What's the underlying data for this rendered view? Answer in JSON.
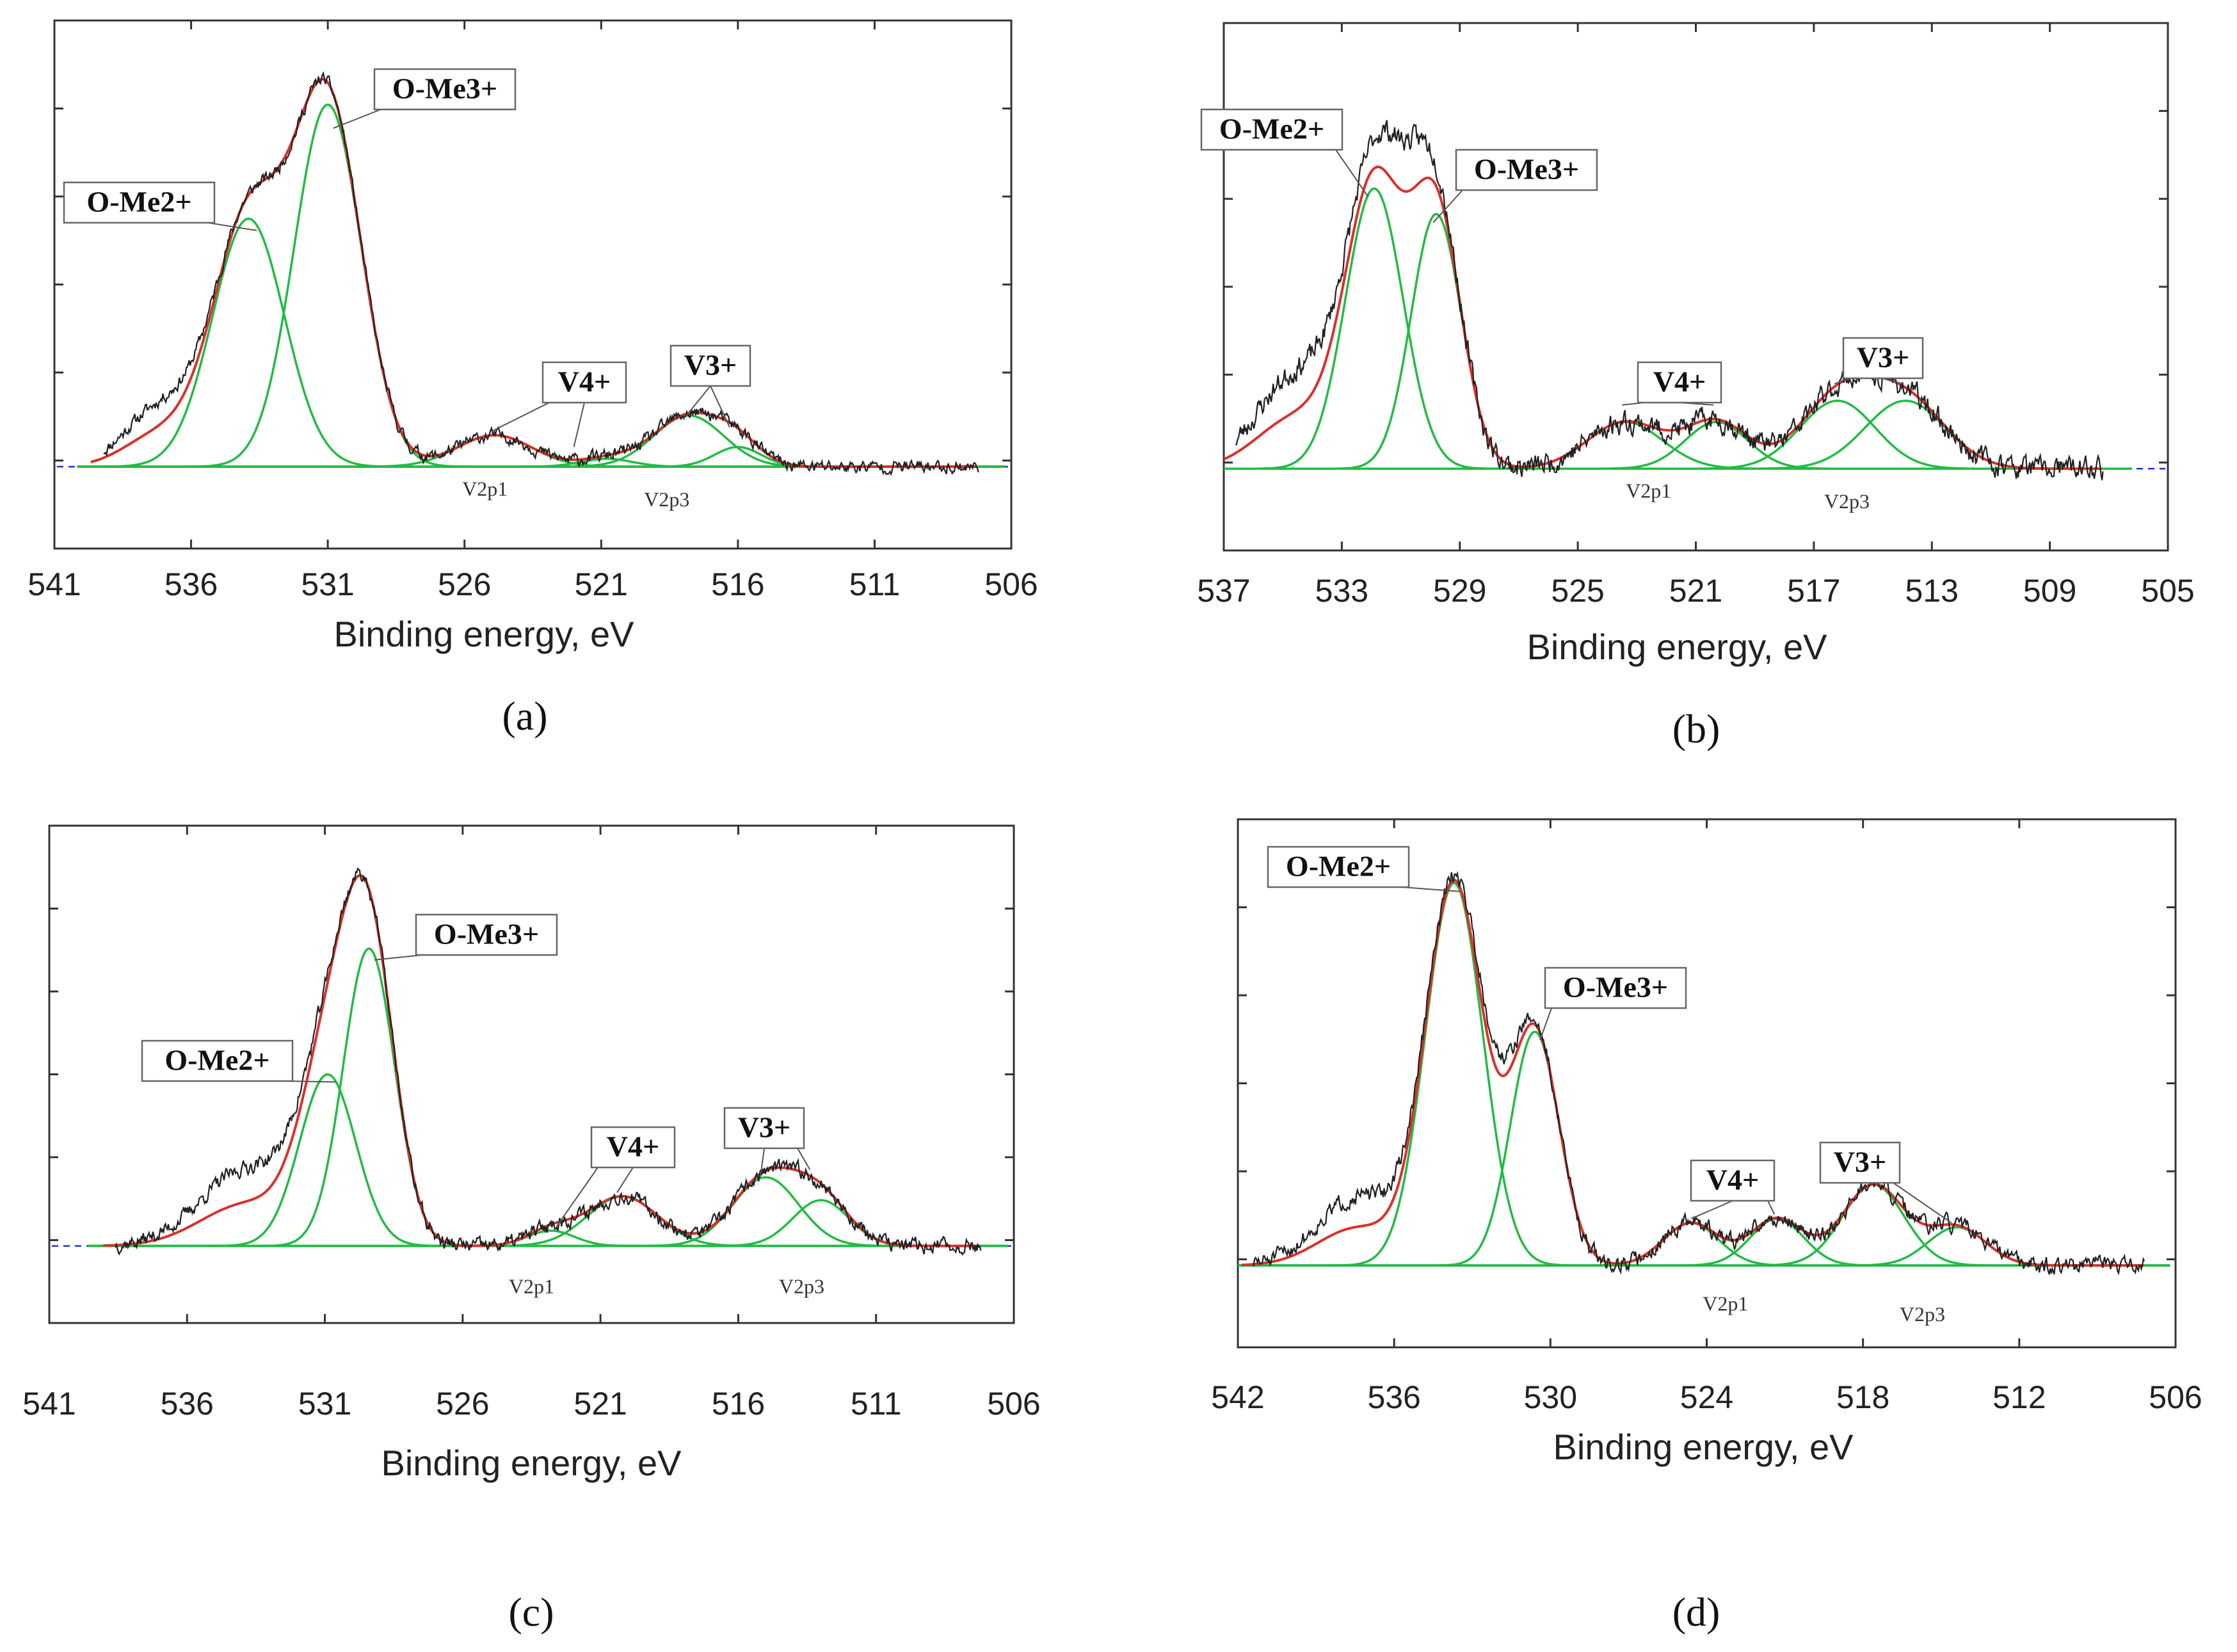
{
  "figure": {
    "colors": {
      "raw": "#222222",
      "envelope": "#d8322c",
      "component": "#22bb44",
      "baseline_dash": "#2233cc",
      "frame": "#333333"
    },
    "font_note": "none"
  },
  "chart_data": [
    {
      "type": "line",
      "panel_label": "(a)",
      "xlabel": "Binding energy, eV",
      "ylabel": "",
      "xlim": [
        541,
        506
      ],
      "ylim": [
        0,
        1.08
      ],
      "xticks": [
        "541",
        "536",
        "531",
        "526",
        "521",
        "516",
        "511",
        "506"
      ],
      "xtick_values": [
        541,
        536,
        531,
        526,
        521,
        516,
        511,
        506
      ],
      "baseline": 0.0,
      "components": [
        {
          "name": "O-Me2+",
          "center": 533.9,
          "height": 0.63,
          "fwhm": 3.1
        },
        {
          "name": "O-Me3+",
          "center": 531.0,
          "height": 0.92,
          "fwhm": 2.9
        },
        {
          "name": "V4+ (V2p1)",
          "center": 524.9,
          "height": 0.08,
          "fwhm": 3.2
        },
        {
          "name": "V4+ (V2p1 shoulder)",
          "center": 520.8,
          "height": 0.02,
          "fwhm": 2.2
        },
        {
          "name": "V3+ (V2p3)",
          "center": 517.8,
          "height": 0.13,
          "fwhm": 3.0
        },
        {
          "name": "V3+ (V2p3 shoulder)",
          "center": 516.0,
          "height": 0.05,
          "fwhm": 2.0
        }
      ],
      "raw_noise": {
        "seed": 11,
        "amp": 0.018,
        "x_start": 539.2,
        "x_end": 507.2,
        "shoulder_center": 537.2,
        "shoulder_height": 0.14,
        "shoulder_fwhm": 3.0
      },
      "annotations": [
        {
          "text": "O-Me2+",
          "target_x": 533.6,
          "target_y": 0.6
        },
        {
          "text": "O-Me3+",
          "target_x": 530.8,
          "target_y": 0.86
        },
        {
          "text": "V4+",
          "target_x": 525.0,
          "target_y": 0.09
        },
        {
          "text": "V4+",
          "target_x": 522.0,
          "target_y": 0.05
        },
        {
          "text": "V3+",
          "target_x": 518.0,
          "target_y": 0.12
        },
        {
          "text": "V3+",
          "target_x": 516.3,
          "target_y": 0.1
        }
      ],
      "component_labels": [
        "V2p1",
        "V2p3"
      ]
    },
    {
      "type": "line",
      "panel_label": "(b)",
      "xlabel": "Binding energy, eV",
      "ylabel": "",
      "xlim": [
        537,
        505
      ],
      "ylim": [
        0,
        1.0
      ],
      "xticks": [
        "537",
        "533",
        "529",
        "525",
        "521",
        "517",
        "513",
        "509",
        "505"
      ],
      "xtick_values": [
        537,
        533,
        529,
        525,
        521,
        517,
        513,
        509,
        505
      ],
      "baseline": 0.0,
      "components": [
        {
          "name": "O-Me2+",
          "center": 531.9,
          "height": 0.66,
          "fwhm": 2.3
        },
        {
          "name": "O-Me3+",
          "center": 529.8,
          "height": 0.6,
          "fwhm": 2.0
        },
        {
          "name": "V4+ (V2p1)",
          "center": 523.4,
          "height": 0.11,
          "fwhm": 3.0
        },
        {
          "name": "V4+ (V2p1b)",
          "center": 520.3,
          "height": 0.11,
          "fwhm": 2.5
        },
        {
          "name": "V3+ (V2p3)",
          "center": 516.2,
          "height": 0.16,
          "fwhm": 3.0
        },
        {
          "name": "V3+ (V2p3b)",
          "center": 513.9,
          "height": 0.16,
          "fwhm": 3.2
        }
      ],
      "raw_noise": {
        "seed": 23,
        "amp": 0.03,
        "x_start": 536.6,
        "x_end": 507.2,
        "shoulder_center": 534.5,
        "shoulder_height": 0.22,
        "shoulder_fwhm": 3.2,
        "peak_boost": 0.12
      },
      "annotations": [
        {
          "text": "O-Me2+",
          "target_x": 532.1,
          "target_y": 0.64
        },
        {
          "text": "O-Me3+",
          "target_x": 529.9,
          "target_y": 0.58
        },
        {
          "text": "V4+",
          "target_x": 523.5,
          "target_y": 0.15
        },
        {
          "text": "V4+",
          "target_x": 520.4,
          "target_y": 0.15
        },
        {
          "text": "V3+",
          "target_x": 516.3,
          "target_y": 0.2
        },
        {
          "text": "V3+",
          "target_x": 514.0,
          "target_y": 0.2
        }
      ],
      "component_labels": [
        "V2p1",
        "V2p3"
      ]
    },
    {
      "type": "line",
      "panel_label": "(c)",
      "xlabel": "Binding energy, eV",
      "ylabel": "",
      "xlim": [
        541,
        506
      ],
      "ylim": [
        0,
        1.05
      ],
      "xticks": [
        "541",
        "536",
        "531",
        "526",
        "521",
        "516",
        "511",
        "506"
      ],
      "xtick_values": [
        541,
        536,
        531,
        526,
        521,
        516,
        511,
        506
      ],
      "baseline": 0.0,
      "components": [
        {
          "name": "O-Me2+",
          "center": 530.9,
          "height": 0.45,
          "fwhm": 2.4
        },
        {
          "name": "O-Me3+",
          "center": 529.4,
          "height": 0.78,
          "fwhm": 2.2
        },
        {
          "name": "V4+ (V2p1)",
          "center": 520.2,
          "height": 0.13,
          "fwhm": 3.0
        },
        {
          "name": "V4+ (V2p1b)",
          "center": 522.8,
          "height": 0.04,
          "fwhm": 2.0
        },
        {
          "name": "V3+ (V2p3)",
          "center": 515.0,
          "height": 0.18,
          "fwhm": 2.8
        },
        {
          "name": "V3+ (V2p3b)",
          "center": 513.0,
          "height": 0.12,
          "fwhm": 2.4
        }
      ],
      "raw_noise": {
        "seed": 37,
        "amp": 0.022,
        "x_start": 538.6,
        "x_end": 507.2,
        "shoulder_center": 533.8,
        "shoulder_height": 0.2,
        "shoulder_fwhm": 4.0
      },
      "annotations": [
        {
          "text": "O-Me2+",
          "target_x": 530.6,
          "target_y": 0.43
        },
        {
          "text": "O-Me3+",
          "target_x": 529.2,
          "target_y": 0.75
        },
        {
          "text": "V4+",
          "target_x": 522.6,
          "target_y": 0.05
        },
        {
          "text": "V4+",
          "target_x": 520.4,
          "target_y": 0.14
        },
        {
          "text": "V3+",
          "target_x": 515.2,
          "target_y": 0.18
        },
        {
          "text": "V3+",
          "target_x": 513.4,
          "target_y": 0.2
        }
      ],
      "component_labels": [
        "V2p1",
        "V2p3"
      ]
    },
    {
      "type": "line",
      "panel_label": "(d)",
      "xlabel": "Binding energy, eV",
      "ylabel": "",
      "xlim": [
        542,
        506
      ],
      "ylim": [
        0,
        1.0
      ],
      "xticks": [
        "542",
        "536",
        "530",
        "524",
        "518",
        "512",
        "506"
      ],
      "xtick_values": [
        542,
        536,
        530,
        524,
        518,
        512,
        506
      ],
      "baseline": 0.0,
      "components": [
        {
          "name": "O-Me2+",
          "center": 533.7,
          "height": 0.9,
          "fwhm": 2.6
        },
        {
          "name": "O-Me3+",
          "center": 530.6,
          "height": 0.55,
          "fwhm": 2.2
        },
        {
          "name": "V4+ (V2p1)",
          "center": 524.6,
          "height": 0.1,
          "fwhm": 2.5
        },
        {
          "name": "V4+ (V2p1b)",
          "center": 521.3,
          "height": 0.11,
          "fwhm": 2.4
        },
        {
          "name": "V3+ (V2p3)",
          "center": 517.6,
          "height": 0.19,
          "fwhm": 2.8
        },
        {
          "name": "V3+ (V2p3b)",
          "center": 514.4,
          "height": 0.09,
          "fwhm": 2.6
        }
      ],
      "raw_noise": {
        "seed": 51,
        "amp": 0.022,
        "x_start": 541.4,
        "x_end": 507.2,
        "shoulder_center": 537.4,
        "shoulder_height": 0.16,
        "shoulder_fwhm": 3.6,
        "peak_boost": 0.05
      },
      "annotations": [
        {
          "text": "O-Me2+",
          "target_x": 533.5,
          "target_y": 0.88
        },
        {
          "text": "O-Me3+",
          "target_x": 530.4,
          "target_y": 0.53
        },
        {
          "text": "V4+",
          "target_x": 524.6,
          "target_y": 0.11
        },
        {
          "text": "V4+",
          "target_x": 521.4,
          "target_y": 0.12
        },
        {
          "text": "V3+",
          "target_x": 517.8,
          "target_y": 0.2
        },
        {
          "text": "V3+",
          "target_x": 514.6,
          "target_y": 0.1
        }
      ],
      "component_labels": [
        "V2p1",
        "V2p3"
      ]
    }
  ]
}
